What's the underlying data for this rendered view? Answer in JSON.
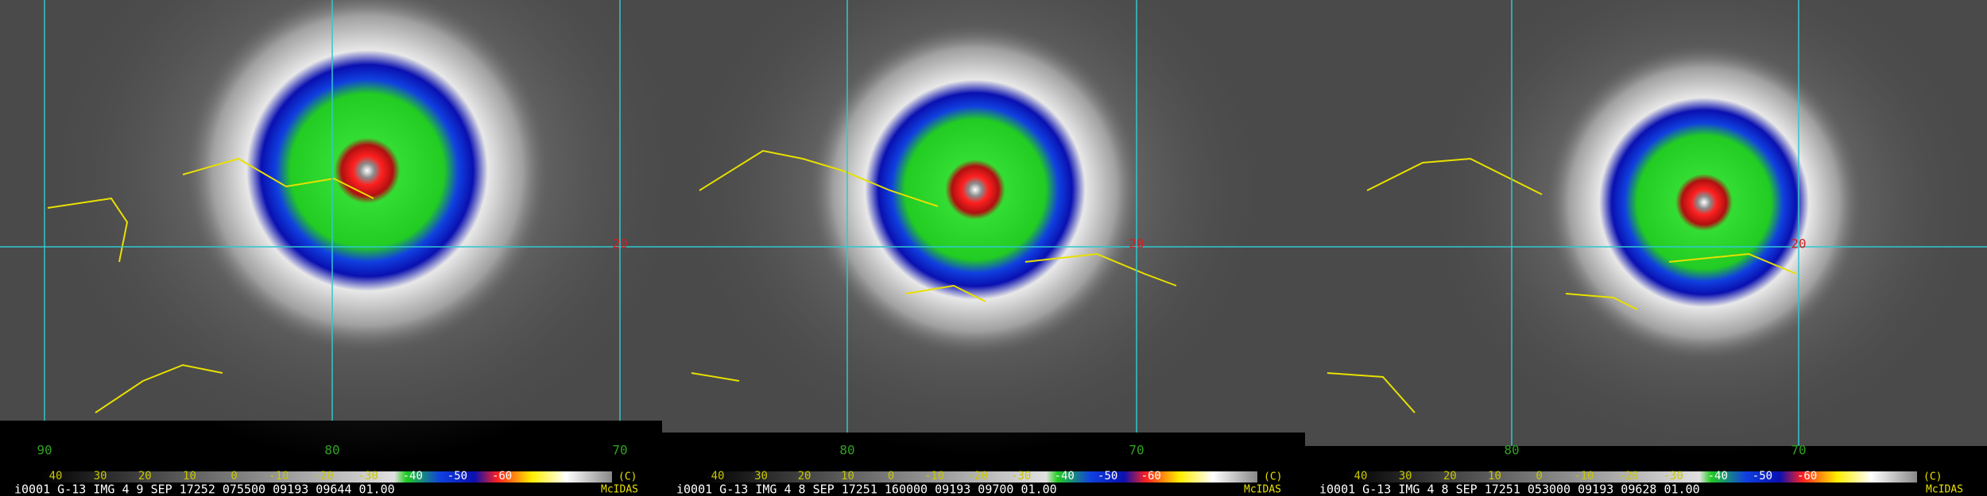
{
  "panels": [
    {
      "lon_labels": [
        "90",
        "80",
        "70"
      ],
      "lat_label": "20",
      "colorbar_labels": [
        "40",
        "30",
        "20",
        "10",
        "0",
        "-10",
        "-20",
        "-30",
        "-40",
        "-50",
        "-60"
      ],
      "unit": "(C)",
      "footer": "i0001 G-13 IMG    4  9 SEP 17252 075500 09193 09644 01.00",
      "logo": "McIDAS"
    },
    {
      "lon_labels": [
        "80",
        "70"
      ],
      "lat_label": "20",
      "colorbar_labels": [
        "40",
        "30",
        "20",
        "10",
        "0",
        "-10",
        "-20",
        "-30",
        "-40",
        "-50",
        "-60"
      ],
      "unit": "(C)",
      "footer": "i0001 G-13 IMG    4  8 SEP 17251 160000 09193 09700 01.00",
      "logo": "McIDAS"
    },
    {
      "lon_labels": [
        "80",
        "70"
      ],
      "lat_label": "20",
      "colorbar_labels": [
        "40",
        "30",
        "20",
        "10",
        "0",
        "-10",
        "-20",
        "-30",
        "-40",
        "-50",
        "-60"
      ],
      "unit": "(C)",
      "footer": "i0001 G-13 IMG    4  8 SEP 17251 053000 09193 09628 01.00",
      "logo": "McIDAS"
    }
  ]
}
